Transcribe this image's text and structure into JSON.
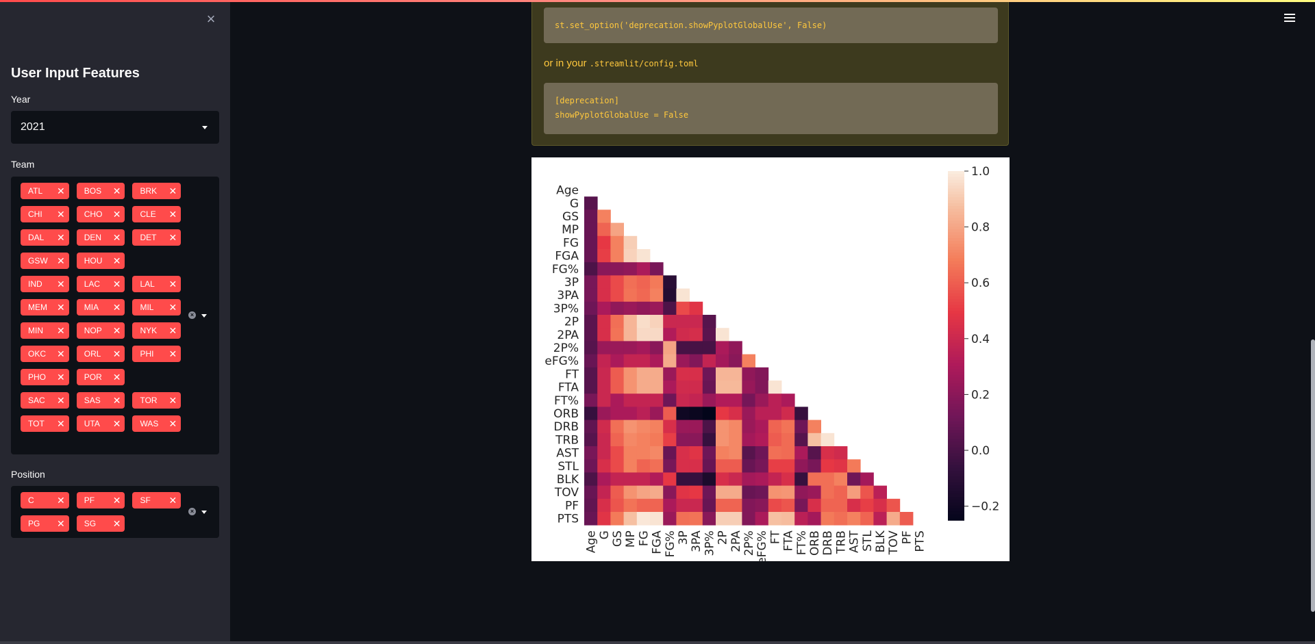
{
  "sidebar": {
    "close_icon": "×",
    "title": "User Input Features",
    "year": {
      "label": "Year",
      "value": "2021"
    },
    "team": {
      "label": "Team",
      "rows": [
        [
          "ATL",
          "BOS",
          "BRK"
        ],
        [
          "CHI",
          "CHO",
          "CLE"
        ],
        [
          "DAL",
          "DEN",
          "DET"
        ],
        [
          "GSW",
          "HOU"
        ],
        [
          "IND",
          "LAC",
          "LAL"
        ],
        [
          "MEM",
          "MIA",
          "MIL"
        ],
        [
          "MIN",
          "NOP",
          "NYK"
        ],
        [
          "OKC",
          "ORL",
          "PHI"
        ],
        [
          "PHO",
          "POR"
        ],
        [
          "SAC",
          "SAS",
          "TOR"
        ],
        [
          "TOT",
          "UTA",
          "WAS"
        ]
      ]
    },
    "position": {
      "label": "Position",
      "rows": [
        [
          "C",
          "PF",
          "SF"
        ],
        [
          "PG",
          "SG"
        ]
      ]
    }
  },
  "warning": {
    "code1": "st.set_option('deprecation.showPyplotGlobalUse', False)",
    "text_prefix": "or in your",
    "text_code": ".streamlit/config.toml",
    "code2_line1": "[deprecation]",
    "code2_line2": "showPyplotGlobalUse = False"
  },
  "menu_icon": "hamburger-menu-icon",
  "colors": {
    "accent": "#ff4b4b",
    "warning_text": "#ffc83d",
    "sidebar_bg": "#262730",
    "app_bg": "#0e1117"
  },
  "chart_data": {
    "type": "heatmap",
    "mask": "upper-triangle",
    "labels": [
      "Age",
      "G",
      "GS",
      "MP",
      "FG",
      "FGA",
      "FG%",
      "3P",
      "3PA",
      "3P%",
      "2P",
      "2PA",
      "2P%",
      "eFG%",
      "FT",
      "FTA",
      "FT%",
      "ORB",
      "DRB",
      "TRB",
      "AST",
      "STL",
      "BLK",
      "TOV",
      "PF",
      "PTS"
    ],
    "colorbar": {
      "ticks": [
        "1.0",
        "0.8",
        "0.6",
        "0.4",
        "0.2",
        "0.0",
        "−0.2"
      ],
      "range": [
        -0.25,
        1.0
      ],
      "colormap": "rocket"
    },
    "values": [
      [],
      [
        0.05
      ],
      [
        0.1,
        0.7
      ],
      [
        0.1,
        0.62,
        0.8
      ],
      [
        0.1,
        0.5,
        0.7,
        0.92
      ],
      [
        0.1,
        0.52,
        0.7,
        0.93,
        0.98
      ],
      [
        0.02,
        0.2,
        0.2,
        0.22,
        0.3,
        0.15
      ],
      [
        0.15,
        0.45,
        0.55,
        0.65,
        0.62,
        0.68,
        -0.1
      ],
      [
        0.15,
        0.45,
        0.55,
        0.66,
        0.63,
        0.7,
        -0.12,
        0.98
      ],
      [
        0.12,
        0.3,
        0.22,
        0.25,
        0.22,
        0.25,
        0.02,
        0.55,
        0.48
      ],
      [
        0.06,
        0.45,
        0.65,
        0.85,
        0.96,
        0.93,
        0.4,
        0.4,
        0.4,
        0.05
      ],
      [
        0.06,
        0.45,
        0.66,
        0.85,
        0.95,
        0.95,
        0.32,
        0.42,
        0.44,
        0.06,
        0.98
      ],
      [
        0.05,
        0.25,
        0.25,
        0.25,
        0.28,
        0.2,
        0.8,
        0.0,
        0.0,
        0.0,
        0.3,
        0.22
      ],
      [
        0.1,
        0.38,
        0.3,
        0.38,
        0.38,
        0.3,
        0.82,
        0.25,
        0.18,
        0.38,
        0.28,
        0.2,
        0.7
      ],
      [
        0.05,
        0.4,
        0.6,
        0.75,
        0.82,
        0.82,
        0.25,
        0.45,
        0.45,
        0.12,
        0.85,
        0.85,
        0.22,
        0.18
      ],
      [
        0.05,
        0.4,
        0.6,
        0.75,
        0.82,
        0.82,
        0.3,
        0.42,
        0.42,
        0.1,
        0.86,
        0.86,
        0.24,
        0.18,
        0.98
      ],
      [
        0.15,
        0.4,
        0.3,
        0.38,
        0.38,
        0.38,
        0.12,
        0.4,
        0.38,
        0.25,
        0.32,
        0.32,
        0.14,
        0.25,
        0.35,
        0.3
      ],
      [
        -0.05,
        0.25,
        0.3,
        0.3,
        0.35,
        0.25,
        0.6,
        -0.2,
        -0.22,
        -0.25,
        0.5,
        0.45,
        0.25,
        0.35,
        0.35,
        0.42,
        -0.05
      ],
      [
        0.08,
        0.42,
        0.65,
        0.75,
        0.72,
        0.7,
        0.45,
        0.25,
        0.25,
        0.02,
        0.75,
        0.72,
        0.25,
        0.3,
        0.62,
        0.66,
        0.12,
        0.7
      ],
      [
        0.05,
        0.4,
        0.62,
        0.72,
        0.7,
        0.68,
        0.52,
        0.2,
        0.2,
        -0.05,
        0.75,
        0.72,
        0.28,
        0.32,
        0.6,
        0.64,
        0.05,
        0.88,
        0.98
      ],
      [
        0.15,
        0.4,
        0.55,
        0.7,
        0.7,
        0.72,
        0.1,
        0.45,
        0.48,
        0.12,
        0.7,
        0.72,
        0.05,
        0.12,
        0.65,
        0.64,
        0.3,
        0.05,
        0.45,
        0.42
      ],
      [
        0.12,
        0.45,
        0.55,
        0.7,
        0.62,
        0.65,
        0.15,
        0.45,
        0.45,
        0.1,
        0.6,
        0.6,
        0.1,
        0.15,
        0.52,
        0.52,
        0.22,
        0.15,
        0.5,
        0.48,
        0.68
      ],
      [
        0.02,
        0.3,
        0.38,
        0.38,
        0.38,
        0.32,
        0.5,
        -0.05,
        -0.05,
        -0.15,
        0.45,
        0.4,
        0.28,
        0.3,
        0.38,
        0.45,
        -0.05,
        0.65,
        0.65,
        0.7,
        0.12,
        0.28
      ],
      [
        0.1,
        0.38,
        0.6,
        0.75,
        0.8,
        0.82,
        0.2,
        0.48,
        0.5,
        0.12,
        0.82,
        0.82,
        0.1,
        0.12,
        0.75,
        0.76,
        0.22,
        0.25,
        0.65,
        0.62,
        0.78,
        0.58,
        0.35
      ],
      [
        0.08,
        0.45,
        0.58,
        0.66,
        0.62,
        0.62,
        0.3,
        0.4,
        0.4,
        0.1,
        0.62,
        0.62,
        0.18,
        0.2,
        0.55,
        0.58,
        0.15,
        0.45,
        0.62,
        0.62,
        0.45,
        0.52,
        0.45,
        0.58
      ],
      [
        0.1,
        0.48,
        0.68,
        0.88,
        0.99,
        0.98,
        0.25,
        0.65,
        0.66,
        0.2,
        0.92,
        0.92,
        0.18,
        0.3,
        0.88,
        0.87,
        0.35,
        0.28,
        0.68,
        0.65,
        0.7,
        0.62,
        0.35,
        0.82,
        0.6
      ]
    ]
  }
}
